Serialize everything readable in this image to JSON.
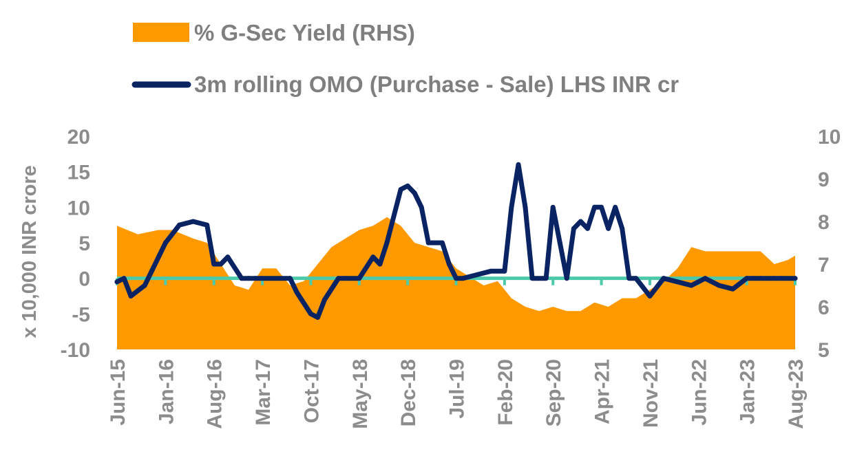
{
  "chart_data": {
    "type": "area+line",
    "title": "",
    "ylabel": "x 10,000 INR crore",
    "ylim": [
      -10,
      20
    ],
    "y2lim": [
      5,
      10
    ],
    "yticks": [
      "20",
      "15",
      "10",
      "5",
      "0",
      "-5",
      "-10"
    ],
    "y2ticks": [
      "10",
      "9",
      "8",
      "7",
      "6",
      "5"
    ],
    "xticks": [
      "Jun-15",
      "Jan-16",
      "Aug-16",
      "Mar-17",
      "Oct-17",
      "May-18",
      "Dec-18",
      "Jul-19",
      "Feb-20",
      "Sep-20",
      "Apr-21",
      "Nov-21",
      "Jun-22",
      "Jan-23",
      "Aug-23"
    ],
    "legend_position": "top",
    "series": [
      {
        "name": "% G-Sec Yield (RHS)",
        "type": "area",
        "axis": "right",
        "color": "#FF9900",
        "x": [
          "2015-06",
          "2015-09",
          "2015-12",
          "2016-02",
          "2016-05",
          "2016-07",
          "2016-09",
          "2016-11",
          "2017-01",
          "2017-03",
          "2017-05",
          "2017-07",
          "2017-09",
          "2017-11",
          "2018-01",
          "2018-03",
          "2018-05",
          "2018-07",
          "2018-09",
          "2018-11",
          "2019-01",
          "2019-03",
          "2019-05",
          "2019-07",
          "2019-09",
          "2019-11",
          "2020-01",
          "2020-03",
          "2020-05",
          "2020-07",
          "2020-09",
          "2020-11",
          "2021-01",
          "2021-03",
          "2021-05",
          "2021-07",
          "2021-09",
          "2021-11",
          "2022-01",
          "2022-03",
          "2022-05",
          "2022-07",
          "2022-09",
          "2022-11",
          "2023-01",
          "2023-03",
          "2023-05",
          "2023-07",
          "2023-08"
        ],
        "values": [
          7.9,
          7.7,
          7.8,
          7.8,
          7.6,
          7.5,
          7.0,
          6.5,
          6.4,
          6.9,
          6.9,
          6.5,
          6.6,
          7.0,
          7.4,
          7.6,
          7.8,
          7.9,
          8.1,
          7.9,
          7.5,
          7.4,
          7.3,
          6.9,
          6.7,
          6.5,
          6.6,
          6.2,
          6.0,
          5.9,
          6.0,
          5.9,
          5.9,
          6.1,
          6.0,
          6.2,
          6.2,
          6.4,
          6.6,
          6.9,
          7.4,
          7.3,
          7.3,
          7.3,
          7.3,
          7.3,
          7.0,
          7.1,
          7.2
        ]
      },
      {
        "name": "3m rolling OMO (Purchase - Sale) LHS INR cr",
        "type": "line",
        "axis": "left",
        "color": "#0A2463",
        "x": [
          "2015-06",
          "2015-07",
          "2015-08",
          "2015-10",
          "2015-11",
          "2016-01",
          "2016-03",
          "2016-05",
          "2016-07",
          "2016-08",
          "2016-09",
          "2016-10",
          "2016-12",
          "2017-01",
          "2017-02",
          "2017-03",
          "2017-07",
          "2017-08",
          "2017-10",
          "2017-11",
          "2017-12",
          "2018-02",
          "2018-03",
          "2018-05",
          "2018-07",
          "2018-08",
          "2018-09",
          "2018-11",
          "2018-12",
          "2019-01",
          "2019-02",
          "2019-03",
          "2019-05",
          "2019-06",
          "2019-07",
          "2019-08",
          "2019-10",
          "2019-12",
          "2020-02",
          "2020-03",
          "2020-04",
          "2020-05",
          "2020-06",
          "2020-08",
          "2020-09",
          "2020-10",
          "2020-11",
          "2020-12",
          "2021-01",
          "2021-02",
          "2021-03",
          "2021-04",
          "2021-05",
          "2021-06",
          "2021-07",
          "2021-08",
          "2021-09",
          "2021-11",
          "2022-01",
          "2022-03",
          "2022-05",
          "2022-07",
          "2022-09",
          "2022-11",
          "2023-01",
          "2023-02",
          "2023-03",
          "2023-05",
          "2023-06",
          "2023-08"
        ],
        "values": [
          -0.5,
          0,
          -2.5,
          -1,
          1,
          5,
          7.5,
          8,
          7.5,
          2,
          2,
          3,
          0,
          0,
          0,
          0,
          0,
          -2,
          -5,
          -5.5,
          -3,
          0,
          0,
          0,
          3,
          2,
          5,
          12.5,
          13,
          12,
          10,
          5,
          5,
          2,
          0,
          0,
          0.5,
          1,
          1,
          10,
          16,
          10,
          0,
          0,
          10,
          5,
          0,
          7,
          8,
          7,
          10,
          10,
          7,
          10,
          7,
          0,
          0,
          -2.5,
          0,
          -0.5,
          -1,
          0,
          -1,
          -1.5,
          0,
          0,
          0,
          0,
          0,
          0
        ]
      },
      {
        "name": "zero line",
        "type": "baseline",
        "axis": "left",
        "color": "#4CC9A8",
        "value": 0
      }
    ]
  }
}
